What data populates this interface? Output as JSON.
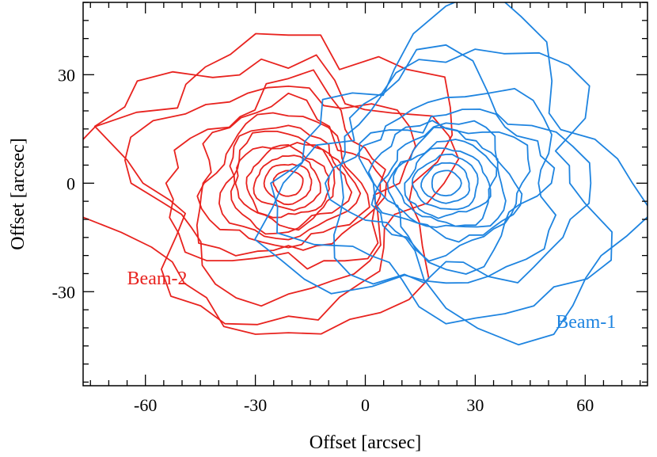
{
  "chart_data": {
    "type": "contour",
    "xlabel": "Offset [arcsec]",
    "ylabel": "Offset [arcsec]",
    "xlim": [
      -77,
      77
    ],
    "ylim": [
      -56,
      50
    ],
    "x_ticks": [
      -60,
      -30,
      0,
      30,
      60
    ],
    "x_tick_labels": [
      "-60",
      "-30",
      "0",
      "30",
      "60"
    ],
    "y_ticks": [
      -30,
      0,
      30
    ],
    "y_tick_labels": [
      "-30",
      "0",
      "30"
    ],
    "x_minor_step": 5,
    "y_minor_step": 5,
    "grid": false,
    "series": [
      {
        "name": "Beam-2",
        "color": "#e8231f",
        "peak": [
          -21,
          0
        ],
        "contour_radii_x": [
          4,
          6.5,
          9,
          11.5,
          14,
          16.5,
          19,
          22,
          26,
          31,
          37,
          44,
          50
        ],
        "contour_radii_y": [
          3.5,
          5.5,
          7.5,
          9.5,
          11.5,
          13.5,
          15.5,
          18,
          21,
          25,
          30,
          36,
          41
        ]
      },
      {
        "name": "Beam-1",
        "color": "#1e84e0",
        "peak": [
          22,
          0
        ],
        "contour_radii_x": [
          4,
          6.5,
          9,
          11.5,
          14,
          16.5,
          19,
          22,
          26,
          31,
          37,
          44,
          50
        ],
        "contour_radii_y": [
          3.5,
          5.5,
          7.5,
          9.5,
          11.5,
          13.5,
          15.5,
          18,
          21,
          25,
          30,
          36,
          41
        ]
      }
    ]
  },
  "labels": {
    "beam2": "Beam-2",
    "beam1": "Beam-1"
  }
}
